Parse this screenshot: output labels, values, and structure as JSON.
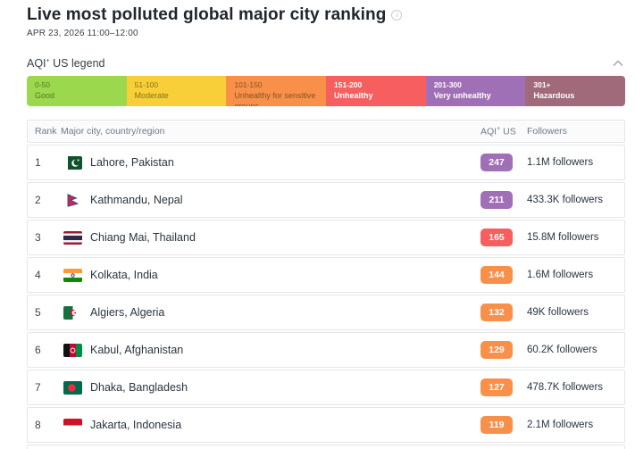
{
  "header": {
    "title": "Live most polluted global major city ranking",
    "date_range": "APR 23, 2026 11:00–12:00",
    "info_icon_glyph": "i"
  },
  "legend": {
    "title_prefix": "AQI",
    "title_sup": "+",
    "title_suffix": " US legend",
    "collapse_icon": "chevron-up",
    "segments": [
      {
        "range": "0-50",
        "label": "Good",
        "color": "#9cd84e",
        "text": "dark"
      },
      {
        "range": "51-100",
        "label": "Moderate",
        "color": "#f9cf39",
        "text": "dark"
      },
      {
        "range": "101-150",
        "label": "Unhealthy for sensitive groups",
        "color": "#f99049",
        "text": "dark"
      },
      {
        "range": "151-200",
        "label": "Unhealthy",
        "color": "#f65e5f",
        "text": "light"
      },
      {
        "range": "201-300",
        "label": "Very unhealthy",
        "color": "#a070b6",
        "text": "light"
      },
      {
        "range": "301+",
        "label": "Hazardous",
        "color": "#a06a7b",
        "text": "light"
      }
    ]
  },
  "table": {
    "columns": {
      "rank": "Rank",
      "city": "Major city, country/region",
      "aqi_prefix": "AQI",
      "aqi_sup": "+",
      "aqi_suffix": " US",
      "followers": "Followers"
    },
    "rows": [
      {
        "rank": "1",
        "flag": "pakistan",
        "city": "Lahore, Pakistan",
        "aqi": "247",
        "aqi_color": "#a070b6",
        "followers": "1.1M followers"
      },
      {
        "rank": "2",
        "flag": "nepal",
        "city": "Kathmandu, Nepal",
        "aqi": "211",
        "aqi_color": "#a070b6",
        "followers": "433.3K followers"
      },
      {
        "rank": "3",
        "flag": "thailand",
        "city": "Chiang Mai, Thailand",
        "aqi": "165",
        "aqi_color": "#f65e5f",
        "followers": "15.8M followers"
      },
      {
        "rank": "4",
        "flag": "india",
        "city": "Kolkata, India",
        "aqi": "144",
        "aqi_color": "#f99049",
        "followers": "1.6M followers"
      },
      {
        "rank": "5",
        "flag": "algeria",
        "city": "Algiers, Algeria",
        "aqi": "132",
        "aqi_color": "#f99049",
        "followers": "49K followers"
      },
      {
        "rank": "6",
        "flag": "afghanistan",
        "city": "Kabul, Afghanistan",
        "aqi": "129",
        "aqi_color": "#f99049",
        "followers": "60.2K followers"
      },
      {
        "rank": "7",
        "flag": "bangladesh",
        "city": "Dhaka, Bangladesh",
        "aqi": "127",
        "aqi_color": "#f99049",
        "followers": "478.7K followers"
      },
      {
        "rank": "8",
        "flag": "indonesia",
        "city": "Jakarta, Indonesia",
        "aqi": "119",
        "aqi_color": "#f99049",
        "followers": "2.1M followers"
      }
    ]
  }
}
